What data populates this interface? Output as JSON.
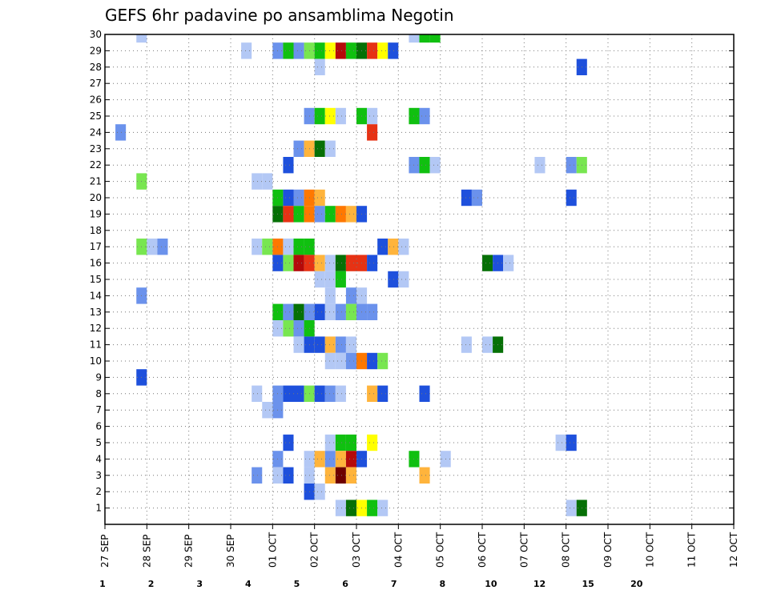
{
  "chart_data": {
    "type": "heatmap",
    "title": "GEFS 6hr padavine po ansamblima Negotin",
    "y_tick_labels": [
      "1",
      "2",
      "3",
      "4",
      "5",
      "6",
      "7",
      "8",
      "9",
      "10",
      "11",
      "12",
      "13",
      "14",
      "15",
      "16",
      "17",
      "18",
      "19",
      "20",
      "21",
      "22",
      "23",
      "24",
      "25",
      "26",
      "27",
      "28",
      "29",
      "30"
    ],
    "x_tick_labels": [
      "27 SEP",
      "28 SEP",
      "29 SEP",
      "30 SEP",
      "01 OCT",
      "02 OCT",
      "03 OCT",
      "04 OCT",
      "05 OCT",
      "06 OCT",
      "07 OCT",
      "08 OCT",
      "09 OCT",
      "10 OCT",
      "11 OCT",
      "12 OCT"
    ],
    "x_ticks_days": [
      0,
      1,
      2,
      3,
      4,
      5,
      6,
      7,
      8,
      9,
      10,
      11,
      12,
      13,
      14,
      15
    ],
    "x_range_days": [
      0,
      15
    ],
    "y_range": [
      0,
      30
    ],
    "steps_per_day": 4,
    "colorbar": {
      "labels": [
        "1",
        "2",
        "3",
        "4",
        "5",
        "6",
        "7",
        "8",
        "10",
        "12",
        "15",
        "20"
      ],
      "colors": [
        "#b3c8f5",
        "#6b92ec",
        "#1e50dc",
        "#3264f0",
        "#78e650",
        "#10c010",
        "#067006",
        "#ffff00",
        "#ffb43c",
        "#ff7800",
        "#e63214",
        "#b40a0a",
        "#6e0000"
      ]
    },
    "cells": [
      [
        30,
        3,
        0
      ],
      [
        30,
        29,
        0
      ],
      [
        30,
        30,
        5
      ],
      [
        30,
        31,
        5
      ],
      [
        29,
        13,
        0
      ],
      [
        29,
        16,
        1
      ],
      [
        29,
        17,
        5
      ],
      [
        29,
        18,
        1
      ],
      [
        29,
        19,
        4
      ],
      [
        29,
        20,
        5
      ],
      [
        29,
        21,
        7
      ],
      [
        29,
        22,
        11
      ],
      [
        29,
        23,
        5
      ],
      [
        29,
        24,
        6
      ],
      [
        29,
        25,
        10
      ],
      [
        29,
        26,
        7
      ],
      [
        29,
        27,
        2
      ],
      [
        28,
        20,
        0
      ],
      [
        28,
        45,
        2
      ],
      [
        25,
        19,
        1
      ],
      [
        25,
        20,
        5
      ],
      [
        25,
        21,
        7
      ],
      [
        25,
        22,
        0
      ],
      [
        25,
        24,
        5
      ],
      [
        25,
        25,
        0
      ],
      [
        25,
        29,
        5
      ],
      [
        25,
        30,
        1
      ],
      [
        24,
        1,
        1
      ],
      [
        24,
        25,
        10
      ],
      [
        23,
        18,
        1
      ],
      [
        23,
        19,
        8
      ],
      [
        23,
        20,
        6
      ],
      [
        23,
        21,
        0
      ],
      [
        22,
        17,
        2
      ],
      [
        22,
        29,
        1
      ],
      [
        22,
        30,
        5
      ],
      [
        22,
        31,
        0
      ],
      [
        22,
        41,
        0
      ],
      [
        22,
        44,
        1
      ],
      [
        22,
        45,
        4
      ],
      [
        21,
        3,
        4
      ],
      [
        21,
        14,
        0
      ],
      [
        21,
        15,
        0
      ],
      [
        20,
        16,
        5
      ],
      [
        20,
        17,
        2
      ],
      [
        20,
        18,
        1
      ],
      [
        20,
        19,
        9
      ],
      [
        20,
        20,
        8
      ],
      [
        20,
        34,
        2
      ],
      [
        20,
        35,
        1
      ],
      [
        20,
        44,
        2
      ],
      [
        19,
        16,
        6
      ],
      [
        19,
        17,
        10
      ],
      [
        19,
        18,
        5
      ],
      [
        19,
        19,
        9
      ],
      [
        19,
        20,
        1
      ],
      [
        19,
        21,
        5
      ],
      [
        19,
        22,
        9
      ],
      [
        19,
        23,
        8
      ],
      [
        19,
        24,
        2
      ],
      [
        17,
        3,
        4
      ],
      [
        17,
        4,
        0
      ],
      [
        17,
        5,
        1
      ],
      [
        17,
        14,
        0
      ],
      [
        17,
        15,
        4
      ],
      [
        17,
        16,
        9
      ],
      [
        17,
        17,
        0
      ],
      [
        17,
        18,
        5
      ],
      [
        17,
        19,
        5
      ],
      [
        17,
        26,
        2
      ],
      [
        17,
        27,
        8
      ],
      [
        17,
        28,
        0
      ],
      [
        16,
        16,
        2
      ],
      [
        16,
        17,
        4
      ],
      [
        16,
        18,
        11
      ],
      [
        16,
        19,
        10
      ],
      [
        16,
        20,
        8
      ],
      [
        16,
        21,
        0
      ],
      [
        16,
        22,
        6
      ],
      [
        16,
        23,
        10
      ],
      [
        16,
        24,
        10
      ],
      [
        16,
        25,
        2
      ],
      [
        16,
        36,
        6
      ],
      [
        16,
        37,
        2
      ],
      [
        16,
        38,
        0
      ],
      [
        15,
        20,
        0
      ],
      [
        15,
        21,
        0
      ],
      [
        15,
        22,
        5
      ],
      [
        15,
        27,
        2
      ],
      [
        15,
        28,
        0
      ],
      [
        14,
        3,
        1
      ],
      [
        14,
        21,
        0
      ],
      [
        14,
        23,
        1
      ],
      [
        14,
        24,
        0
      ],
      [
        13,
        16,
        5
      ],
      [
        13,
        17,
        1
      ],
      [
        13,
        18,
        6
      ],
      [
        13,
        19,
        1
      ],
      [
        13,
        20,
        2
      ],
      [
        13,
        21,
        0
      ],
      [
        13,
        22,
        1
      ],
      [
        13,
        23,
        4
      ],
      [
        13,
        24,
        1
      ],
      [
        13,
        25,
        1
      ],
      [
        12,
        16,
        0
      ],
      [
        12,
        17,
        4
      ],
      [
        12,
        18,
        1
      ],
      [
        12,
        19,
        5
      ],
      [
        11,
        18,
        0
      ],
      [
        11,
        19,
        2
      ],
      [
        11,
        20,
        2
      ],
      [
        11,
        21,
        8
      ],
      [
        11,
        22,
        1
      ],
      [
        11,
        23,
        0
      ],
      [
        11,
        34,
        0
      ],
      [
        11,
        36,
        0
      ],
      [
        11,
        37,
        6
      ],
      [
        10,
        21,
        0
      ],
      [
        10,
        22,
        0
      ],
      [
        10,
        23,
        1
      ],
      [
        10,
        24,
        9
      ],
      [
        10,
        25,
        2
      ],
      [
        10,
        26,
        4
      ],
      [
        9,
        3,
        2
      ],
      [
        8,
        14,
        0
      ],
      [
        8,
        16,
        1
      ],
      [
        8,
        17,
        2
      ],
      [
        8,
        18,
        2
      ],
      [
        8,
        19,
        4
      ],
      [
        8,
        20,
        2
      ],
      [
        8,
        21,
        1
      ],
      [
        8,
        22,
        0
      ],
      [
        8,
        25,
        8
      ],
      [
        8,
        26,
        2
      ],
      [
        8,
        30,
        2
      ],
      [
        7,
        15,
        0
      ],
      [
        7,
        16,
        1
      ],
      [
        5,
        17,
        2
      ],
      [
        5,
        21,
        0
      ],
      [
        5,
        22,
        5
      ],
      [
        5,
        23,
        5
      ],
      [
        5,
        25,
        7
      ],
      [
        5,
        43,
        0
      ],
      [
        5,
        44,
        2
      ],
      [
        4,
        16,
        1
      ],
      [
        4,
        19,
        0
      ],
      [
        4,
        20,
        8
      ],
      [
        4,
        21,
        1
      ],
      [
        4,
        22,
        8
      ],
      [
        4,
        23,
        11
      ],
      [
        4,
        24,
        2
      ],
      [
        4,
        29,
        5
      ],
      [
        4,
        32,
        0
      ],
      [
        3,
        14,
        1
      ],
      [
        3,
        16,
        0
      ],
      [
        3,
        17,
        2
      ],
      [
        3,
        19,
        0
      ],
      [
        3,
        21,
        8
      ],
      [
        3,
        22,
        12
      ],
      [
        3,
        23,
        8
      ],
      [
        3,
        30,
        8
      ],
      [
        2,
        19,
        2
      ],
      [
        2,
        20,
        0
      ],
      [
        1,
        22,
        0
      ],
      [
        1,
        23,
        6
      ],
      [
        1,
        24,
        7
      ],
      [
        1,
        25,
        5
      ],
      [
        1,
        26,
        0
      ],
      [
        1,
        44,
        0
      ],
      [
        1,
        45,
        6
      ]
    ]
  }
}
